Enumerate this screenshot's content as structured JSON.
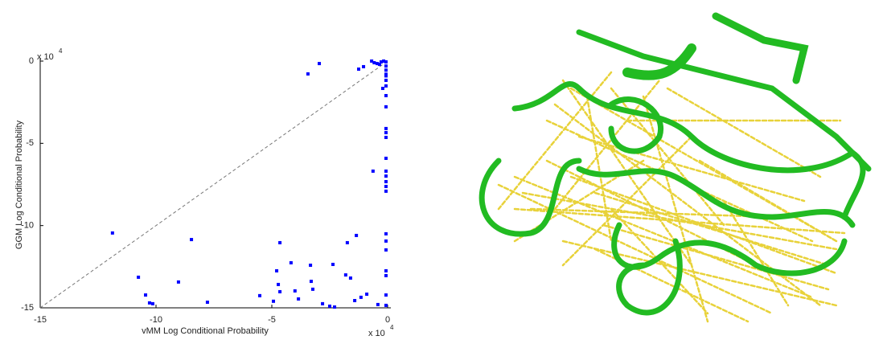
{
  "chart_data": {
    "type": "scatter",
    "xlabel": "vMM Log Conditional Probability",
    "ylabel": "GGM Log Conditional Probability",
    "x_scale_label": "x 10",
    "x_scale_exp": "4",
    "y_scale_label": "x 10",
    "y_scale_exp": "4",
    "xlim": [
      -15,
      0
    ],
    "ylim": [
      -15,
      0
    ],
    "xticks": [
      -15,
      -10,
      -5,
      0
    ],
    "yticks": [
      -15,
      -10,
      -5,
      0
    ],
    "diagonal": true,
    "color": "#0000ff",
    "x": [
      -3.44,
      -2.95,
      -1.25,
      -1.04,
      -0.69,
      -0.58,
      -0.45,
      -0.35,
      -0.28,
      -0.17,
      -0.07,
      -0.07,
      -0.07,
      -0.07,
      -0.07,
      -0.07,
      -0.07,
      -0.07,
      -0.07,
      -0.07,
      -0.07,
      -0.07,
      -0.07,
      -0.07,
      -0.07,
      -0.07,
      -0.07,
      -0.07,
      -0.07,
      -0.07,
      -0.07,
      -0.07,
      -0.07,
      -0.07,
      -0.07,
      -0.21,
      -0.63,
      -11.88,
      -8.47,
      -4.65,
      -1.74,
      -1.35,
      -10.76,
      -10.45,
      -10.28,
      -10.14,
      -9.03,
      -7.78,
      -5.52,
      -4.79,
      -4.72,
      -4.65,
      -4.93,
      -4.17,
      -4.0,
      -3.85,
      -3.33,
      -3.3,
      -3.23,
      -2.81,
      -2.5,
      -2.29,
      -2.36,
      -1.81,
      -1.6,
      -1.42,
      -0.9,
      -1.15,
      -0.42
    ],
    "values": [
      -0.78,
      -0.15,
      -0.49,
      -0.34,
      0,
      -0.1,
      -0.15,
      -0.2,
      -0.05,
      0,
      -0.05,
      -0.3,
      -0.55,
      -0.8,
      -1.17,
      -1.51,
      -2.1,
      -2.78,
      -4.1,
      -4.35,
      -4.64,
      -5.91,
      -6.69,
      -6.99,
      -7.33,
      -7.62,
      -7.91,
      -10.5,
      -10.94,
      -11.48,
      -12.75,
      -13.04,
      -14.22,
      -14.85,
      -0.9,
      -1.66,
      -6.69,
      -10.45,
      -10.85,
      -11.04,
      -11.04,
      -10.6,
      -13.14,
      -14.22,
      -14.7,
      -14.75,
      -13.43,
      -14.66,
      -14.26,
      -12.75,
      -13.58,
      -14.02,
      -14.6,
      -12.26,
      -13.97,
      -14.46,
      -12.41,
      -13.39,
      -13.87,
      -14.75,
      -14.9,
      -14.95,
      -12.36,
      -13.0,
      -13.19,
      -14.56,
      -14.17,
      -14.36,
      -14.8
    ]
  }
}
